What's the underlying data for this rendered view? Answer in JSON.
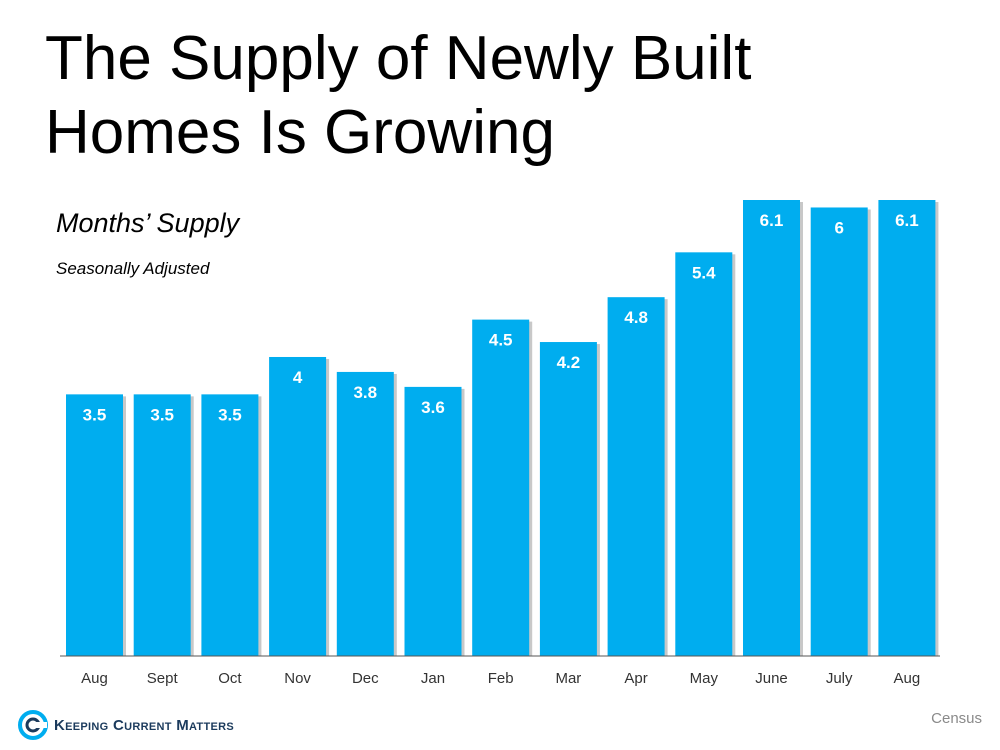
{
  "title": "The Supply of Newly Built Homes Is Growing",
  "subtitle": "Months’ Supply",
  "subsubtitle": "Seasonally Adjusted",
  "logo_text": "Keeping Current Matters",
  "source": "Census",
  "colors": {
    "bar": "#00adef",
    "axis": "#555555"
  },
  "chart_data": {
    "type": "bar",
    "categories": [
      "Aug",
      "Sept",
      "Oct",
      "Nov",
      "Dec",
      "Jan",
      "Feb",
      "Mar",
      "Apr",
      "May",
      "June",
      "July",
      "Aug"
    ],
    "values": [
      3.5,
      3.5,
      3.5,
      4,
      3.8,
      3.6,
      4.5,
      4.2,
      4.8,
      5.4,
      6.1,
      6,
      6.1
    ],
    "ylim": [
      0,
      6.1
    ],
    "grid": false,
    "data_labels": true
  }
}
